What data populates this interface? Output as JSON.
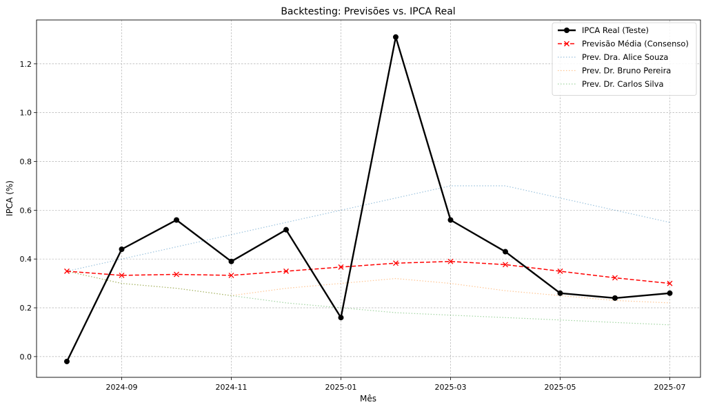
{
  "chart_data": {
    "type": "line",
    "title": "Backtesting: Previsões vs. IPCA Real",
    "xlabel": "Mês",
    "ylabel": "IPCA (%)",
    "x": [
      "2024-08",
      "2024-09",
      "2024-10",
      "2024-11",
      "2024-12",
      "2025-01",
      "2025-02",
      "2025-03",
      "2025-04",
      "2025-05",
      "2025-06",
      "2025-07"
    ],
    "xticks": [
      "2024-09",
      "2024-11",
      "2025-01",
      "2025-03",
      "2025-05",
      "2025-07"
    ],
    "yticks": [
      "0.0",
      "0.2",
      "0.4",
      "0.6",
      "0.8",
      "1.0",
      "1.2"
    ],
    "ylim": [
      -0.085,
      1.38
    ],
    "grid": true,
    "legend_position": "top-right",
    "series": [
      {
        "name": "IPCA Real (Teste)",
        "color": "#000000",
        "style": "solid-marker-circle",
        "values": [
          -0.02,
          0.44,
          0.56,
          0.39,
          0.52,
          0.16,
          1.31,
          0.56,
          0.43,
          0.26,
          0.24,
          0.26
        ]
      },
      {
        "name": "Previsão Média (Consenso)",
        "color": "#ff0000",
        "style": "dashed-marker-x",
        "values": [
          0.35,
          0.333,
          0.337,
          0.333,
          0.35,
          0.367,
          0.383,
          0.39,
          0.377,
          0.35,
          0.323,
          0.3
        ]
      },
      {
        "name": "Prev. Dra. Alice Souza",
        "color": "#1f77b4",
        "style": "dotted",
        "values": [
          0.35,
          0.4,
          0.45,
          0.5,
          0.55,
          0.6,
          0.65,
          0.7,
          0.7,
          0.65,
          0.6,
          0.55
        ]
      },
      {
        "name": "Prev. Dr. Bruno Pereira",
        "color": "#ff7f0e",
        "style": "dotted",
        "values": [
          0.35,
          0.3,
          0.28,
          0.25,
          0.28,
          0.3,
          0.32,
          0.3,
          0.27,
          0.25,
          0.23,
          0.22
        ]
      },
      {
        "name": "Prev. Dr. Carlos Silva",
        "color": "#2ca02c",
        "style": "dotted",
        "values": [
          0.35,
          0.3,
          0.28,
          0.25,
          0.22,
          0.2,
          0.18,
          0.17,
          0.16,
          0.15,
          0.14,
          0.13
        ]
      }
    ]
  }
}
